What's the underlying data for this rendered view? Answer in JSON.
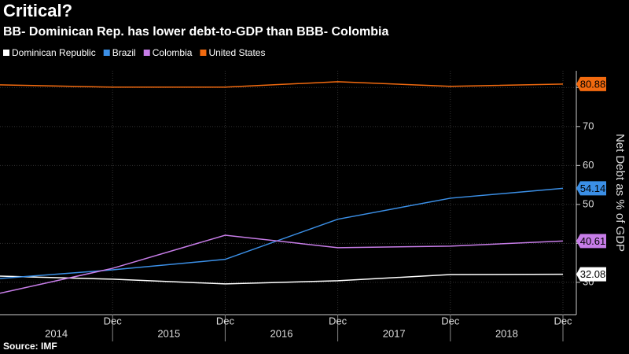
{
  "chart_data": {
    "type": "line",
    "title": "Critical?",
    "subtitle": "BB- Dominican Rep. has lower debt-to-GDP than BBB- Colombia",
    "y_label": "Net Debt as % of GDP",
    "source": "Source: IMF",
    "x": [
      null,
      "Dec",
      "Dec",
      "Dec",
      "Dec",
      "Dec"
    ],
    "periods": [
      "2014",
      "2015",
      "2016",
      "2017",
      "2018"
    ],
    "series": [
      {
        "name": "Dominican Republic",
        "color": "#ffffff",
        "values": [
          31.6,
          30.8,
          29.6,
          30.4,
          32.0,
          32.08
        ]
      },
      {
        "name": "Brazil",
        "color": "#3b8fe6",
        "values": [
          31.0,
          33.2,
          35.9,
          46.2,
          51.6,
          54.14
        ]
      },
      {
        "name": "Colombia",
        "color": "#c77de8",
        "values": [
          27.2,
          33.6,
          42.1,
          38.9,
          39.3,
          40.61
        ]
      },
      {
        "name": "United States",
        "color": "#f26a0f",
        "values": [
          80.7,
          80.1,
          80.1,
          81.5,
          80.3,
          80.88
        ]
      }
    ],
    "ylim": [
      21.7,
      84.3
    ],
    "yticks": [
      30,
      40,
      50,
      60,
      70,
      80
    ],
    "grid": true
  }
}
